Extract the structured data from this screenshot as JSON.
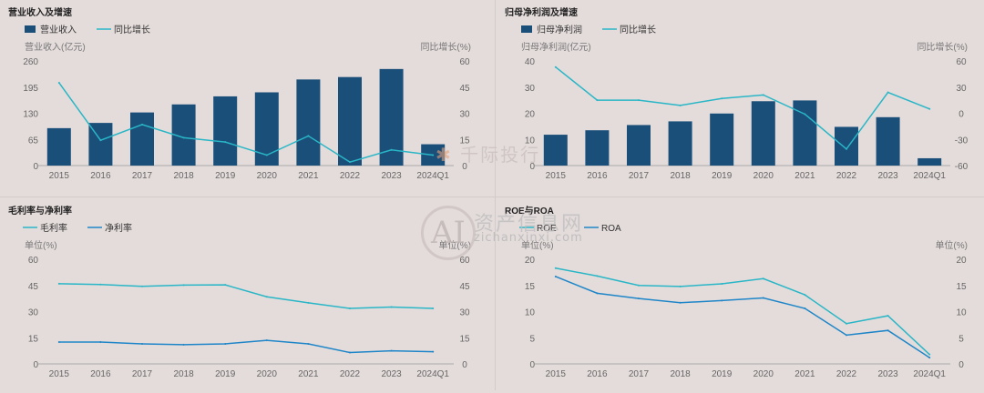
{
  "colors": {
    "bar": "#1a4f7a",
    "line_teal": "#29b6c6",
    "line_blue": "#1e86c8",
    "axis": "#aaaaaa",
    "text": "#555555"
  },
  "chart_data": [
    {
      "id": "revenue",
      "type": "bar+line",
      "title": "营业收入及增速",
      "legend": [
        "营业收入",
        "同比增长"
      ],
      "ylabel_left": "营业收入(亿元)",
      "ylabel_right": "同比增长(%)",
      "left_ticks": [
        "0",
        "65",
        "130",
        "195",
        "260"
      ],
      "right_ticks": [
        "0",
        "15",
        "30",
        "45",
        "60"
      ],
      "ylim_left": [
        0,
        260
      ],
      "ylim_right": [
        0,
        60
      ],
      "categories": [
        "2015",
        "2016",
        "2017",
        "2018",
        "2019",
        "2020",
        "2021",
        "2022",
        "2023",
        "2024Q1"
      ],
      "bars": [
        93,
        106,
        132,
        152,
        172,
        182,
        214,
        220,
        240,
        53
      ],
      "line": [
        47.5,
        14.5,
        23.5,
        16,
        13.5,
        6,
        17,
        2,
        9,
        6
      ]
    },
    {
      "id": "net_profit",
      "type": "bar+line",
      "title": "归母净利润及增速",
      "legend": [
        "归母净利润",
        "同比增长"
      ],
      "ylabel_left": "归母净利润(亿元)",
      "ylabel_right": "同比增长(%)",
      "left_ticks": [
        "0",
        "10",
        "20",
        "30",
        "40"
      ],
      "right_ticks": [
        "-60",
        "-30",
        "0",
        "30",
        "60"
      ],
      "ylim_left": [
        0,
        40
      ],
      "ylim_right": [
        -60,
        60
      ],
      "categories": [
        "2015",
        "2016",
        "2017",
        "2018",
        "2019",
        "2020",
        "2021",
        "2022",
        "2023",
        "2024Q1"
      ],
      "bars": [
        11.8,
        13.5,
        15.5,
        16.9,
        19.9,
        24.6,
        24.9,
        14.8,
        18.5,
        2.8
      ],
      "line": [
        53,
        15,
        15,
        9,
        17,
        21,
        -1,
        -41,
        24,
        5
      ]
    },
    {
      "id": "margins",
      "type": "line",
      "title": "毛利率与净利率",
      "legend": [
        "毛利率",
        "净利率"
      ],
      "ylabel_left": "单位(%)",
      "ylabel_right": "单位(%)",
      "left_ticks": [
        "0",
        "15",
        "30",
        "45",
        "60"
      ],
      "right_ticks": [
        "0",
        "15",
        "30",
        "45",
        "60"
      ],
      "ylim_left": [
        0,
        60
      ],
      "ylim_right": [
        0,
        60
      ],
      "categories": [
        "2015",
        "2016",
        "2017",
        "2018",
        "2019",
        "2020",
        "2021",
        "2022",
        "2023",
        "2024Q1"
      ],
      "series": [
        {
          "name": "毛利率",
          "values": [
            46,
            45.5,
            44.5,
            45.2,
            45.3,
            38.5,
            35,
            31.8,
            32.6,
            31.8
          ]
        },
        {
          "name": "净利率",
          "values": [
            12.5,
            12.5,
            11.5,
            11,
            11.5,
            13.5,
            11.5,
            6.5,
            7.5,
            7
          ]
        }
      ]
    },
    {
      "id": "roe_roa",
      "type": "line",
      "title": "ROE与ROA",
      "legend": [
        "ROE",
        "ROA"
      ],
      "ylabel_left": "单位(%)",
      "ylabel_right": "单位(%)",
      "left_ticks": [
        "0",
        "5",
        "10",
        "15",
        "20"
      ],
      "right_ticks": [
        "0",
        "5",
        "10",
        "15",
        "20"
      ],
      "ylim_left": [
        0,
        20
      ],
      "ylim_right": [
        0,
        20
      ],
      "categories": [
        "2015",
        "2016",
        "2017",
        "2018",
        "2019",
        "2020",
        "2021",
        "2022",
        "2023",
        "2024Q1"
      ],
      "series": [
        {
          "name": "ROE",
          "values": [
            18.3,
            16.8,
            15,
            14.8,
            15.3,
            16.3,
            13.2,
            7.7,
            9.2,
            1.8
          ]
        },
        {
          "name": "ROA",
          "values": [
            16.7,
            13.5,
            12.5,
            11.7,
            12.1,
            12.6,
            10.6,
            5.5,
            6.4,
            1.2
          ]
        }
      ]
    }
  ],
  "watermarks": {
    "qianji": "千际投行",
    "zichan": "资产信息网",
    "site": "zichanxinxi.com",
    "logo": "AI"
  }
}
